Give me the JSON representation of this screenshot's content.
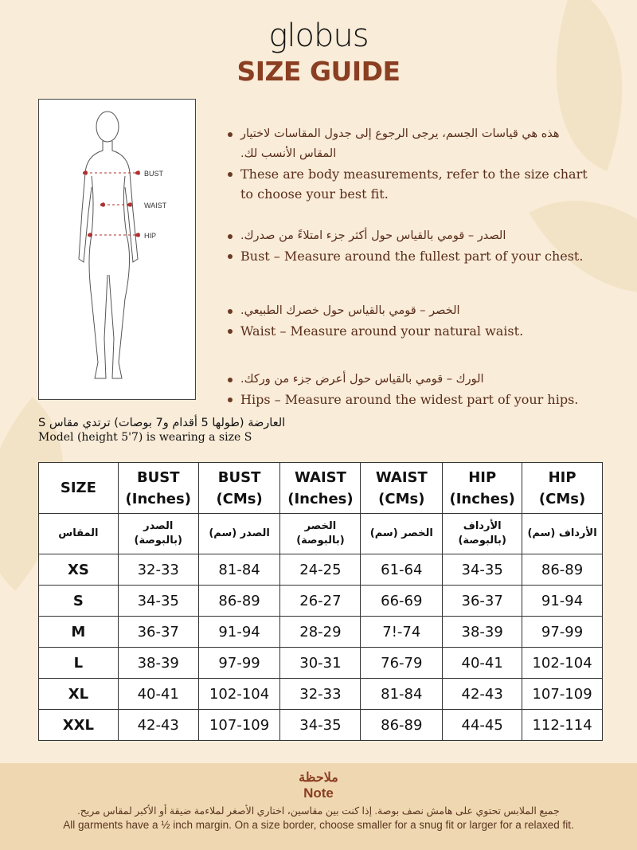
{
  "brand": "globus",
  "title": "SIZE GUIDE",
  "figure": {
    "labels": [
      "BUST",
      "WAIST",
      "HIP"
    ],
    "marker_color": "#b03030"
  },
  "bullets": [
    {
      "ar": "هذه هي قياسات الجسم، يرجى الرجوع إلى جدول المقاسات لاختيار المقاس الأنسب لك.",
      "en": "These are body measurements, refer to the size chart to choose your best fit."
    },
    {
      "ar": "الصدر – قومي بالقياس حول أكثر جزء امتلاءً من صدرك.",
      "en": "Bust – Measure around the fullest part of your chest."
    },
    {
      "ar": "الخصر – قومي بالقياس حول خصرك الطبيعي.",
      "en": "Waist – Measure around your natural waist."
    },
    {
      "ar": "الورك – قومي بالقياس حول أعرض جزء من وركك.",
      "en": "Hips – Measure around the widest part of your hips."
    }
  ],
  "model": {
    "ar": "العارضة (طولها 5 أقدام و7 بوصات) ترتدي مقاس S",
    "en": "Model (height 5'7) is wearing a size S"
  },
  "table": {
    "headers": [
      [
        "SIZE",
        ""
      ],
      [
        "BUST",
        "(Inches)"
      ],
      [
        "BUST",
        "(CMs)"
      ],
      [
        "WAIST",
        "(Inches)"
      ],
      [
        "WAIST",
        "(CMs)"
      ],
      [
        "HIP",
        "(Inches)"
      ],
      [
        "HIP",
        "(CMs)"
      ]
    ],
    "headers_ar": [
      "المقاس",
      "الصدر (بالبوصة)",
      "الصدر (سم)",
      "الخصر (بالبوصة)",
      "الخصر (سم)",
      "الأرداف (بالبوصة)",
      "الأرداف (سم)"
    ],
    "rows": [
      [
        "XS",
        "32-33",
        "81-84",
        "24-25",
        "61-64",
        "34-35",
        "86-89"
      ],
      [
        "S",
        "34-35",
        "86-89",
        "26-27",
        "66-69",
        "36-37",
        "91-94"
      ],
      [
        "M",
        "36-37",
        "91-94",
        "28-29",
        "7!-74",
        "38-39",
        "97-99"
      ],
      [
        "L",
        "38-39",
        "97-99",
        "30-31",
        "76-79",
        "40-41",
        "102-104"
      ],
      [
        "XL",
        "40-41",
        "102-104",
        "32-33",
        "81-84",
        "42-43",
        "107-109"
      ],
      [
        "XXL",
        "42-43",
        "107-109",
        "34-35",
        "86-89",
        "44-45",
        "112-114"
      ]
    ]
  },
  "note": {
    "title_ar": "ملاحظة",
    "title_en": "Note",
    "text_ar": "جميع الملابس تحتوي على هامش نصف بوصة. إذا كنت بين مقاسين، اختاري الأصغر لملاءمة ضيقة أو الأكبر لمقاس مريح.",
    "text_en": "All garments have a ½ inch margin. On a size border, choose smaller for a snug fit or larger for a relaxed fit."
  },
  "colors": {
    "background": "#f9ecd8",
    "accent": "#8a3e22",
    "note_band": "#efd8b1"
  }
}
